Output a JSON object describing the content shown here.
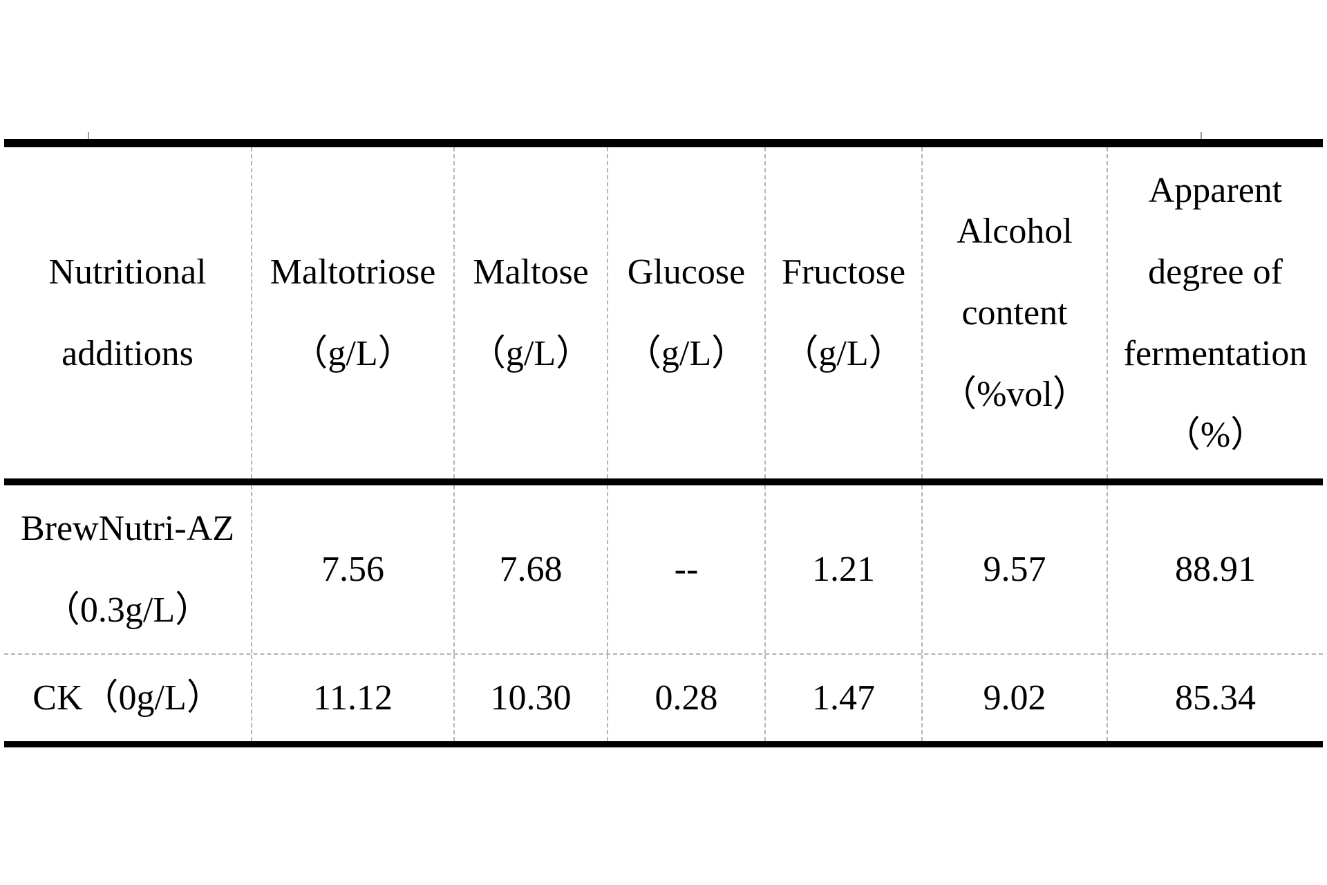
{
  "table": {
    "title_hint": "Fermentation results of nutritional additions",
    "colors": {
      "thick_border": "#000000",
      "grid_dash": "#b4b4b4",
      "text": "#000000",
      "background": "#ffffff"
    },
    "header": [
      {
        "id": "nutritional-additions",
        "lines": [
          "Nutritional",
          "additions"
        ]
      },
      {
        "id": "maltotriose",
        "lines": [
          "Maltotriose",
          "（g/L）"
        ]
      },
      {
        "id": "maltose",
        "lines": [
          "Maltose",
          "（g/L）"
        ]
      },
      {
        "id": "glucose",
        "lines": [
          "Glucose",
          "（g/L）"
        ]
      },
      {
        "id": "fructose",
        "lines": [
          "Fructose",
          "（g/L）"
        ]
      },
      {
        "id": "alcohol-content",
        "lines": [
          "Alcohol",
          "content",
          "（%vol）"
        ]
      },
      {
        "id": "apparent-degree",
        "lines": [
          "Apparent",
          "degree of",
          "fermentation",
          "（%）"
        ]
      }
    ],
    "rows": [
      {
        "label_lines": [
          "BrewNutri-AZ",
          "（0.3g/L）"
        ],
        "values": [
          "7.56",
          "7.68",
          "--",
          "1.21",
          "9.57",
          "88.91"
        ]
      },
      {
        "label_lines": [
          "CK（0g/L）"
        ],
        "values": [
          "11.12",
          "10.30",
          "0.28",
          "1.47",
          "9.02",
          "85.34"
        ]
      }
    ]
  }
}
